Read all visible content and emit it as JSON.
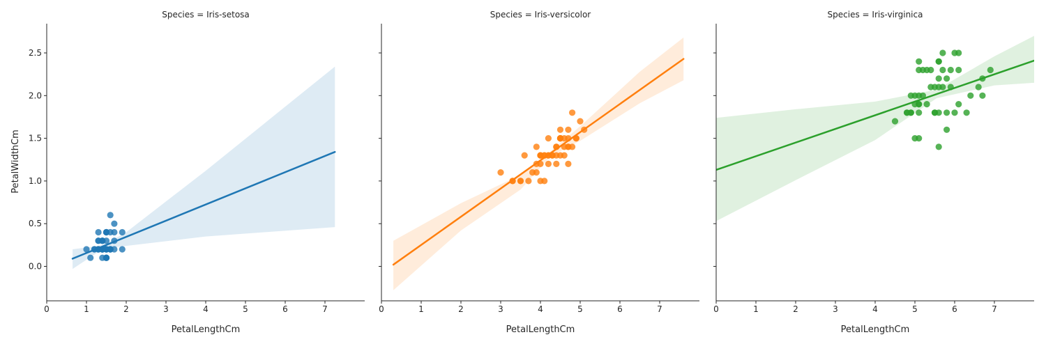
{
  "chart_data": {
    "type": "scatter",
    "xlabel": "PetalLengthCm",
    "ylabel": "PetalWidthCm",
    "xlim": [
      0,
      8
    ],
    "ylim": [
      -0.45,
      2.85
    ],
    "xticks": [
      "0",
      "1",
      "2",
      "3",
      "4",
      "5",
      "6",
      "7"
    ],
    "yticks": [
      "0.0",
      "0.5",
      "1.0",
      "1.5",
      "2.0",
      "2.5"
    ],
    "facets": [
      {
        "title": "Species = Iris-setosa",
        "color": "#1f77b4",
        "points": [
          [
            1.4,
            0.2
          ],
          [
            1.4,
            0.2
          ],
          [
            1.3,
            0.2
          ],
          [
            1.5,
            0.2
          ],
          [
            1.4,
            0.2
          ],
          [
            1.7,
            0.4
          ],
          [
            1.4,
            0.3
          ],
          [
            1.5,
            0.2
          ],
          [
            1.4,
            0.2
          ],
          [
            1.5,
            0.1
          ],
          [
            1.5,
            0.2
          ],
          [
            1.6,
            0.2
          ],
          [
            1.4,
            0.1
          ],
          [
            1.1,
            0.1
          ],
          [
            1.2,
            0.2
          ],
          [
            1.5,
            0.4
          ],
          [
            1.3,
            0.4
          ],
          [
            1.4,
            0.3
          ],
          [
            1.7,
            0.3
          ],
          [
            1.5,
            0.3
          ],
          [
            1.7,
            0.2
          ],
          [
            1.5,
            0.4
          ],
          [
            1.0,
            0.2
          ],
          [
            1.7,
            0.5
          ],
          [
            1.9,
            0.2
          ],
          [
            1.6,
            0.2
          ],
          [
            1.6,
            0.4
          ],
          [
            1.5,
            0.2
          ],
          [
            1.4,
            0.2
          ],
          [
            1.6,
            0.2
          ],
          [
            1.6,
            0.2
          ],
          [
            1.5,
            0.4
          ],
          [
            1.5,
            0.1
          ],
          [
            1.4,
            0.2
          ],
          [
            1.5,
            0.1
          ],
          [
            1.2,
            0.2
          ],
          [
            1.3,
            0.2
          ],
          [
            1.5,
            0.1
          ],
          [
            1.3,
            0.2
          ],
          [
            1.5,
            0.2
          ],
          [
            1.3,
            0.3
          ],
          [
            1.3,
            0.3
          ],
          [
            1.3,
            0.2
          ],
          [
            1.6,
            0.6
          ],
          [
            1.9,
            0.4
          ],
          [
            1.4,
            0.3
          ],
          [
            1.6,
            0.2
          ],
          [
            1.4,
            0.2
          ],
          [
            1.5,
            0.2
          ],
          [
            1.4,
            0.2
          ]
        ],
        "fit": {
          "x": [
            0.65,
            7.25
          ],
          "y": [
            0.09,
            1.34
          ]
        },
        "band": {
          "x": [
            0.65,
            1.3,
            1.5,
            2.0,
            4.0,
            7.25
          ],
          "lower": [
            -0.03,
            0.17,
            0.21,
            0.24,
            0.35,
            0.46
          ],
          "upper": [
            0.2,
            0.24,
            0.27,
            0.4,
            1.12,
            2.34
          ]
        }
      },
      {
        "title": "Species = Iris-versicolor",
        "color": "#ff7f0e",
        "points": [
          [
            4.7,
            1.4
          ],
          [
            4.5,
            1.5
          ],
          [
            4.9,
            1.5
          ],
          [
            4.0,
            1.3
          ],
          [
            4.6,
            1.5
          ],
          [
            4.5,
            1.3
          ],
          [
            4.7,
            1.6
          ],
          [
            3.3,
            1.0
          ],
          [
            4.6,
            1.3
          ],
          [
            3.9,
            1.4
          ],
          [
            3.5,
            1.0
          ],
          [
            4.2,
            1.5
          ],
          [
            4.0,
            1.0
          ],
          [
            4.7,
            1.4
          ],
          [
            3.6,
            1.3
          ],
          [
            4.4,
            1.4
          ],
          [
            4.5,
            1.5
          ],
          [
            4.1,
            1.0
          ],
          [
            4.5,
            1.5
          ],
          [
            3.9,
            1.1
          ],
          [
            4.8,
            1.8
          ],
          [
            4.0,
            1.3
          ],
          [
            4.9,
            1.5
          ],
          [
            4.7,
            1.2
          ],
          [
            4.3,
            1.3
          ],
          [
            4.4,
            1.4
          ],
          [
            4.8,
            1.4
          ],
          [
            5.0,
            1.7
          ],
          [
            4.5,
            1.5
          ],
          [
            3.5,
            1.0
          ],
          [
            3.8,
            1.1
          ],
          [
            3.7,
            1.0
          ],
          [
            3.9,
            1.2
          ],
          [
            5.1,
            1.6
          ],
          [
            4.5,
            1.5
          ],
          [
            4.5,
            1.6
          ],
          [
            4.7,
            1.5
          ],
          [
            4.4,
            1.3
          ],
          [
            4.1,
            1.3
          ],
          [
            4.0,
            1.3
          ],
          [
            4.4,
            1.2
          ],
          [
            4.6,
            1.4
          ],
          [
            4.0,
            1.2
          ],
          [
            3.3,
            1.0
          ],
          [
            4.2,
            1.3
          ],
          [
            4.2,
            1.2
          ],
          [
            4.2,
            1.3
          ],
          [
            4.3,
            1.3
          ],
          [
            3.0,
            1.1
          ],
          [
            4.1,
            1.3
          ]
        ],
        "fit": {
          "x": [
            0.3,
            7.6
          ],
          "y": [
            0.02,
            2.43
          ]
        },
        "band": {
          "x": [
            0.3,
            2.0,
            3.5,
            4.26,
            5.0,
            6.5,
            7.6
          ],
          "lower": [
            -0.28,
            0.42,
            0.9,
            1.29,
            1.47,
            1.91,
            2.18
          ],
          "upper": [
            0.3,
            0.74,
            1.07,
            1.35,
            1.64,
            2.28,
            2.68
          ]
        }
      },
      {
        "title": "Species = Iris-virginica",
        "color": "#2ca02c",
        "points": [
          [
            6.0,
            2.5
          ],
          [
            5.1,
            1.9
          ],
          [
            5.9,
            2.1
          ],
          [
            5.6,
            1.8
          ],
          [
            5.8,
            2.2
          ],
          [
            6.6,
            2.1
          ],
          [
            4.5,
            1.7
          ],
          [
            6.3,
            1.8
          ],
          [
            5.8,
            1.8
          ],
          [
            6.1,
            2.5
          ],
          [
            5.1,
            2.0
          ],
          [
            5.3,
            1.9
          ],
          [
            5.5,
            2.1
          ],
          [
            5.0,
            2.0
          ],
          [
            5.1,
            2.4
          ],
          [
            5.3,
            2.3
          ],
          [
            5.5,
            1.8
          ],
          [
            6.7,
            2.2
          ],
          [
            6.9,
            2.3
          ],
          [
            5.0,
            1.5
          ],
          [
            5.7,
            2.3
          ],
          [
            4.9,
            2.0
          ],
          [
            6.7,
            2.0
          ],
          [
            4.9,
            1.8
          ],
          [
            5.7,
            2.1
          ],
          [
            6.0,
            1.8
          ],
          [
            4.8,
            1.8
          ],
          [
            4.9,
            1.8
          ],
          [
            5.6,
            2.1
          ],
          [
            5.8,
            1.6
          ],
          [
            6.1,
            1.9
          ],
          [
            6.4,
            2.0
          ],
          [
            5.6,
            2.2
          ],
          [
            5.1,
            1.5
          ],
          [
            5.6,
            1.4
          ],
          [
            6.1,
            2.3
          ],
          [
            5.6,
            2.4
          ],
          [
            5.5,
            1.8
          ],
          [
            4.8,
            1.8
          ],
          [
            5.4,
            2.1
          ],
          [
            5.6,
            2.4
          ],
          [
            5.1,
            2.3
          ],
          [
            5.1,
            1.9
          ],
          [
            5.9,
            2.3
          ],
          [
            5.7,
            2.5
          ],
          [
            5.2,
            2.3
          ],
          [
            5.0,
            1.9
          ],
          [
            5.2,
            2.0
          ],
          [
            5.4,
            2.3
          ],
          [
            5.1,
            1.8
          ]
        ],
        "fit": {
          "x": [
            0.0,
            8.0
          ],
          "y": [
            1.13,
            2.41
          ]
        },
        "band": {
          "x": [
            0.0,
            2.0,
            4.0,
            5.55,
            7.0,
            8.0
          ],
          "lower": [
            0.53,
            1.01,
            1.48,
            1.97,
            2.12,
            2.15
          ],
          "upper": [
            1.74,
            1.84,
            1.93,
            2.07,
            2.46,
            2.7
          ]
        }
      }
    ]
  }
}
